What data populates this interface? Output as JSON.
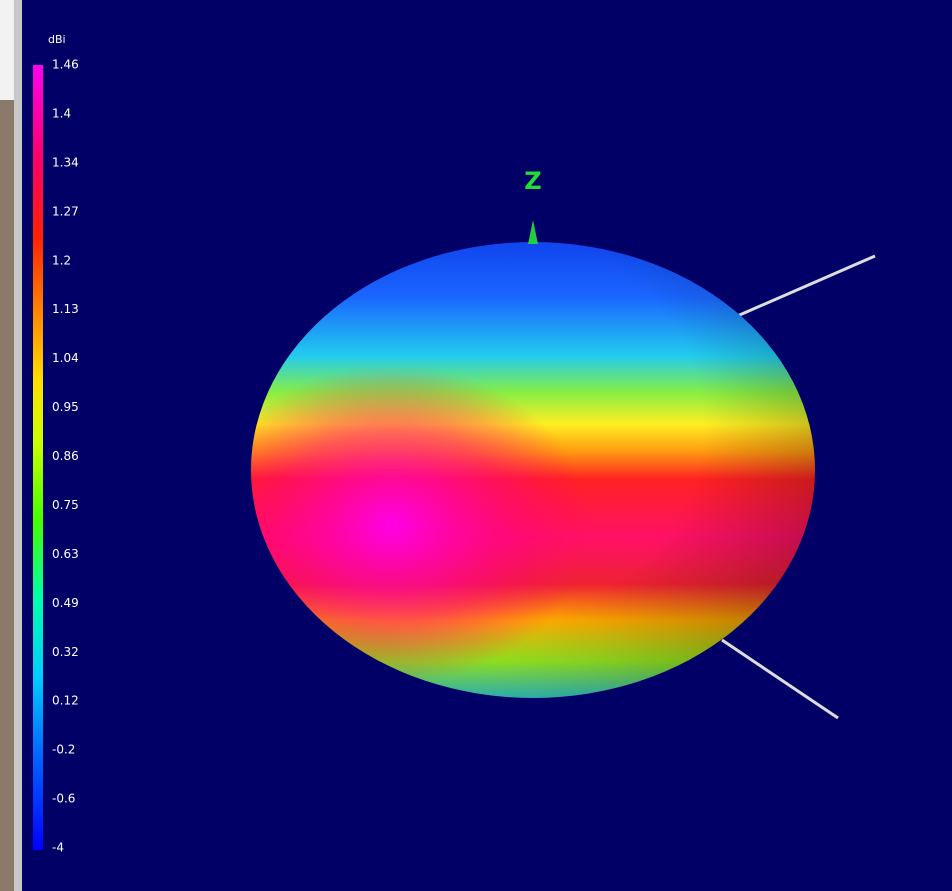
{
  "colorbar": {
    "unit": "dBi",
    "labels": [
      "1.46",
      "1.4",
      "1.34",
      "1.27",
      "1.2",
      "1.13",
      "1.04",
      "0.95",
      "0.86",
      "0.75",
      "0.63",
      "0.49",
      "0.32",
      "0.12",
      "-0.2",
      "-0.6",
      "-4"
    ]
  },
  "axis": {
    "z_label": "Z"
  }
}
